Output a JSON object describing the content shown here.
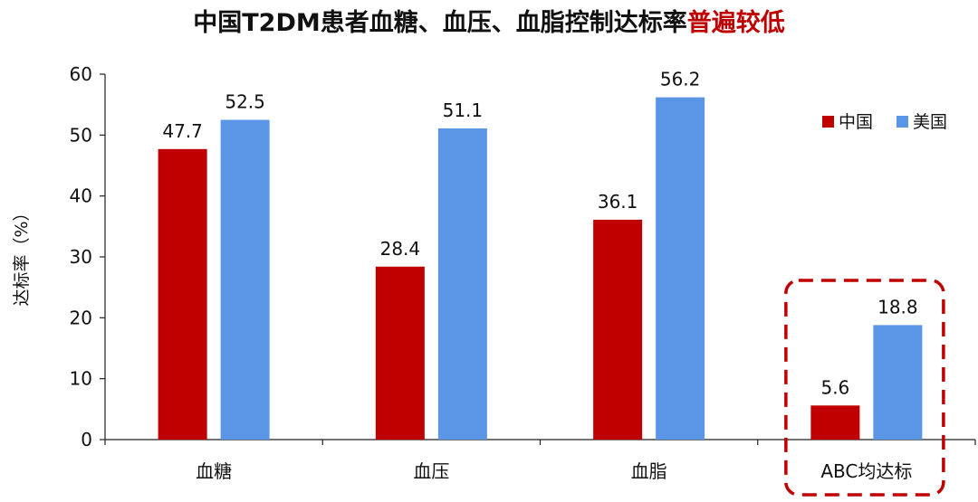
{
  "title": {
    "main": "中国T2DM患者血糖、血压、血脂控制达标率",
    "highlight": "普遍较低"
  },
  "chart_data": {
    "type": "bar",
    "categories": [
      "血糖",
      "血压",
      "血脂",
      "ABC均达标"
    ],
    "series": [
      {
        "name": "中国",
        "values": [
          47.7,
          28.4,
          36.1,
          5.6
        ],
        "color": "#c00000"
      },
      {
        "name": "美国",
        "values": [
          52.5,
          51.1,
          56.2,
          18.8
        ],
        "color": "#5b96e6"
      }
    ],
    "ylabel": "达标率（%）",
    "xlabel": "",
    "ylim": [
      0,
      60
    ],
    "yticks": [
      0,
      10,
      20,
      30,
      40,
      50,
      60
    ],
    "grid": false,
    "legend_position": "right",
    "highlight_category": "ABC均达标",
    "highlight_color": "#c00000"
  }
}
